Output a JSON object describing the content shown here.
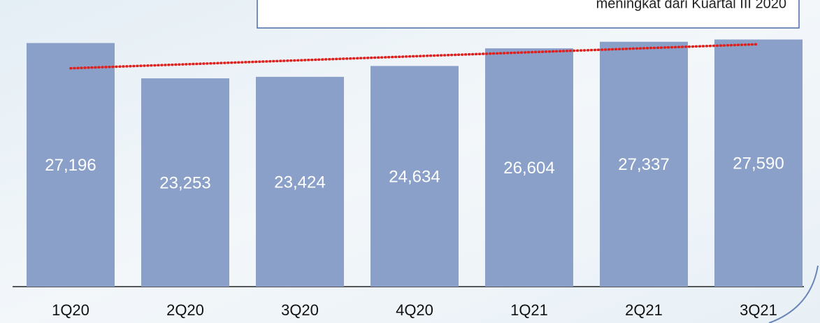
{
  "chart_data": {
    "type": "bar",
    "annotation": "meningkat dari Kuartal III 2020",
    "categories": [
      "1Q20",
      "2Q20",
      "3Q20",
      "4Q20",
      "1Q21",
      "2Q21",
      "3Q21"
    ],
    "values": [
      27196,
      23253,
      23424,
      24634,
      26604,
      27337,
      27590
    ],
    "value_labels": [
      "27,196",
      "23,253",
      "23,424",
      "24,634",
      "26,604",
      "27,337",
      "27,590"
    ],
    "color": "#8aa0c8",
    "ylim": [
      0,
      32000
    ],
    "trendline": "linear",
    "trendline_color": "#e0201c"
  }
}
